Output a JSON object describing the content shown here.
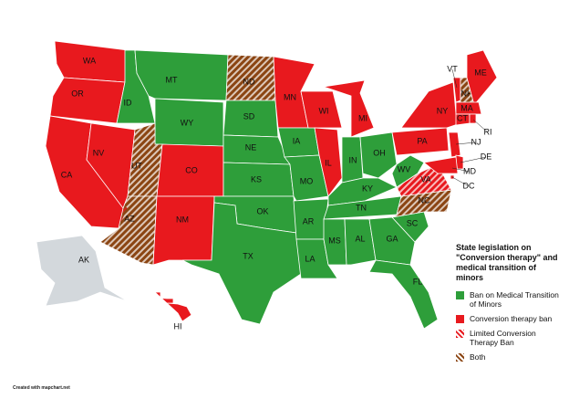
{
  "title": "State legislation on \"Conversion therapy\" and medical transition of minors",
  "legend": [
    {
      "label": "Ban on Medical Transition of Minors",
      "color": "#2e9e3a",
      "hatched": false
    },
    {
      "label": "Conversion therapy ban",
      "color": "#e8191e",
      "hatched": false
    },
    {
      "label": "Limited Conversion Therapy Ban",
      "color": "#e8191e",
      "hatched": true
    },
    {
      "label": "Both",
      "color": "#8b4513",
      "hatched": true
    }
  ],
  "states": [
    {
      "label": "WA",
      "color": "#e8191e",
      "hatched": false
    },
    {
      "label": "OR",
      "color": "#e8191e",
      "hatched": false
    },
    {
      "label": "CA",
      "color": "#e8191e",
      "hatched": false
    },
    {
      "label": "NV",
      "color": "#e8191e",
      "hatched": false
    },
    {
      "label": "ID",
      "color": "#2e9e3a",
      "hatched": false
    },
    {
      "label": "MT",
      "color": "#2e9e3a",
      "hatched": false
    },
    {
      "label": "WY",
      "color": "#2e9e3a",
      "hatched": false
    },
    {
      "label": "UT",
      "color": "#8b4513",
      "hatched": true
    },
    {
      "label": "CO",
      "color": "#e8191e",
      "hatched": false
    },
    {
      "label": "AZ",
      "color": "#8b4513",
      "hatched": true
    },
    {
      "label": "NM",
      "color": "#e8191e",
      "hatched": false
    },
    {
      "label": "ND",
      "color": "#8b4513",
      "hatched": true
    },
    {
      "label": "SD",
      "color": "#2e9e3a",
      "hatched": false
    },
    {
      "label": "NE",
      "color": "#2e9e3a",
      "hatched": false
    },
    {
      "label": "KS",
      "color": "#2e9e3a",
      "hatched": false
    },
    {
      "label": "OK",
      "color": "#2e9e3a",
      "hatched": false
    },
    {
      "label": "TX",
      "color": "#2e9e3a",
      "hatched": false
    },
    {
      "label": "MN",
      "color": "#e8191e",
      "hatched": false
    },
    {
      "label": "IA",
      "color": "#2e9e3a",
      "hatched": false
    },
    {
      "label": "MO",
      "color": "#2e9e3a",
      "hatched": false
    },
    {
      "label": "AR",
      "color": "#2e9e3a",
      "hatched": false
    },
    {
      "label": "LA",
      "color": "#2e9e3a",
      "hatched": false
    },
    {
      "label": "WI",
      "color": "#e8191e",
      "hatched": false
    },
    {
      "label": "IL",
      "color": "#e8191e",
      "hatched": false
    },
    {
      "label": "MI",
      "color": "#e8191e",
      "hatched": false
    },
    {
      "label": "IN",
      "color": "#2e9e3a",
      "hatched": false
    },
    {
      "label": "OH",
      "color": "#2e9e3a",
      "hatched": false
    },
    {
      "label": "KY",
      "color": "#2e9e3a",
      "hatched": false
    },
    {
      "label": "TN",
      "color": "#2e9e3a",
      "hatched": false
    },
    {
      "label": "MS",
      "color": "#2e9e3a",
      "hatched": false
    },
    {
      "label": "AL",
      "color": "#2e9e3a",
      "hatched": false
    },
    {
      "label": "GA",
      "color": "#2e9e3a",
      "hatched": false
    },
    {
      "label": "FL",
      "color": "#2e9e3a",
      "hatched": false
    },
    {
      "label": "SC",
      "color": "#2e9e3a",
      "hatched": false
    },
    {
      "label": "NC",
      "color": "#8b4513",
      "hatched": true
    },
    {
      "label": "VA",
      "color": "#e8191e",
      "hatched": true
    },
    {
      "label": "WV",
      "color": "#2e9e3a",
      "hatched": false
    },
    {
      "label": "PA",
      "color": "#e8191e",
      "hatched": false
    },
    {
      "label": "NY",
      "color": "#e8191e",
      "hatched": false
    },
    {
      "label": "VT",
      "color": "#e8191e",
      "hatched": false
    },
    {
      "label": "NH",
      "color": "#8b4513",
      "hatched": true
    },
    {
      "label": "ME",
      "color": "#e8191e",
      "hatched": false
    },
    {
      "label": "MA",
      "color": "#e8191e",
      "hatched": false
    },
    {
      "label": "CT",
      "color": "#e8191e",
      "hatched": false
    },
    {
      "label": "RI",
      "color": "#e8191e",
      "hatched": false
    },
    {
      "label": "NJ",
      "color": "#e8191e",
      "hatched": false
    },
    {
      "label": "DE",
      "color": "#e8191e",
      "hatched": false
    },
    {
      "label": "MD",
      "color": "#e8191e",
      "hatched": false
    },
    {
      "label": "DC",
      "color": "#e8191e",
      "hatched": false
    },
    {
      "label": "AK",
      "color": "#d3d8dc",
      "hatched": false
    },
    {
      "label": "HI",
      "color": "#e8191e",
      "hatched": false
    }
  ],
  "credit": "Created with mapchart.net"
}
